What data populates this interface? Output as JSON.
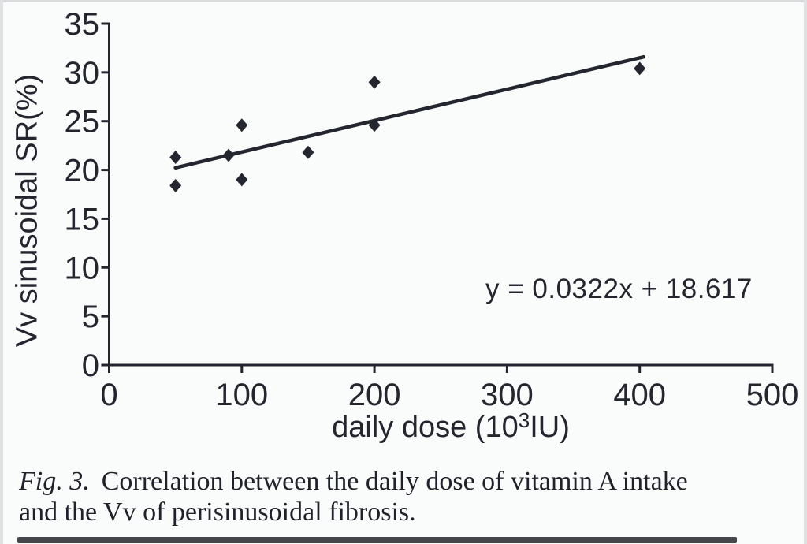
{
  "figure": {
    "caption": {
      "prefix": "Fig. 3.",
      "line1": "Correlation between the daily dose of vitamin A intake",
      "line2": "and the Vv of perisinusoidal fibrosis."
    }
  },
  "chart_data": {
    "type": "scatter",
    "title": "",
    "ylabel": "Vv sinusoidal SR(%)",
    "xlabel_prefix": "daily dose (10",
    "xlabel_sup": "3",
    "xlabel_suffix": "IU)",
    "xlim": [
      0,
      500
    ],
    "ylim": [
      0,
      35
    ],
    "x_ticks": [
      0,
      100,
      200,
      300,
      400,
      500
    ],
    "y_ticks": [
      0,
      5,
      10,
      15,
      20,
      25,
      30,
      35
    ],
    "grid": false,
    "legend": null,
    "marker": "diamond",
    "ink_color": "#23262f",
    "points": [
      {
        "x": 50,
        "y": 21.3
      },
      {
        "x": 50,
        "y": 18.4
      },
      {
        "x": 90,
        "y": 21.5
      },
      {
        "x": 100,
        "y": 24.6
      },
      {
        "x": 100,
        "y": 19.0
      },
      {
        "x": 150,
        "y": 21.8
      },
      {
        "x": 200,
        "y": 29.0
      },
      {
        "x": 200,
        "y": 24.6
      },
      {
        "x": 400,
        "y": 30.4
      }
    ],
    "trendline": {
      "slope": 0.0322,
      "intercept": 18.617,
      "x_start": 50,
      "x_end": 403,
      "label": "y = 0.0322x + 18.617"
    }
  }
}
